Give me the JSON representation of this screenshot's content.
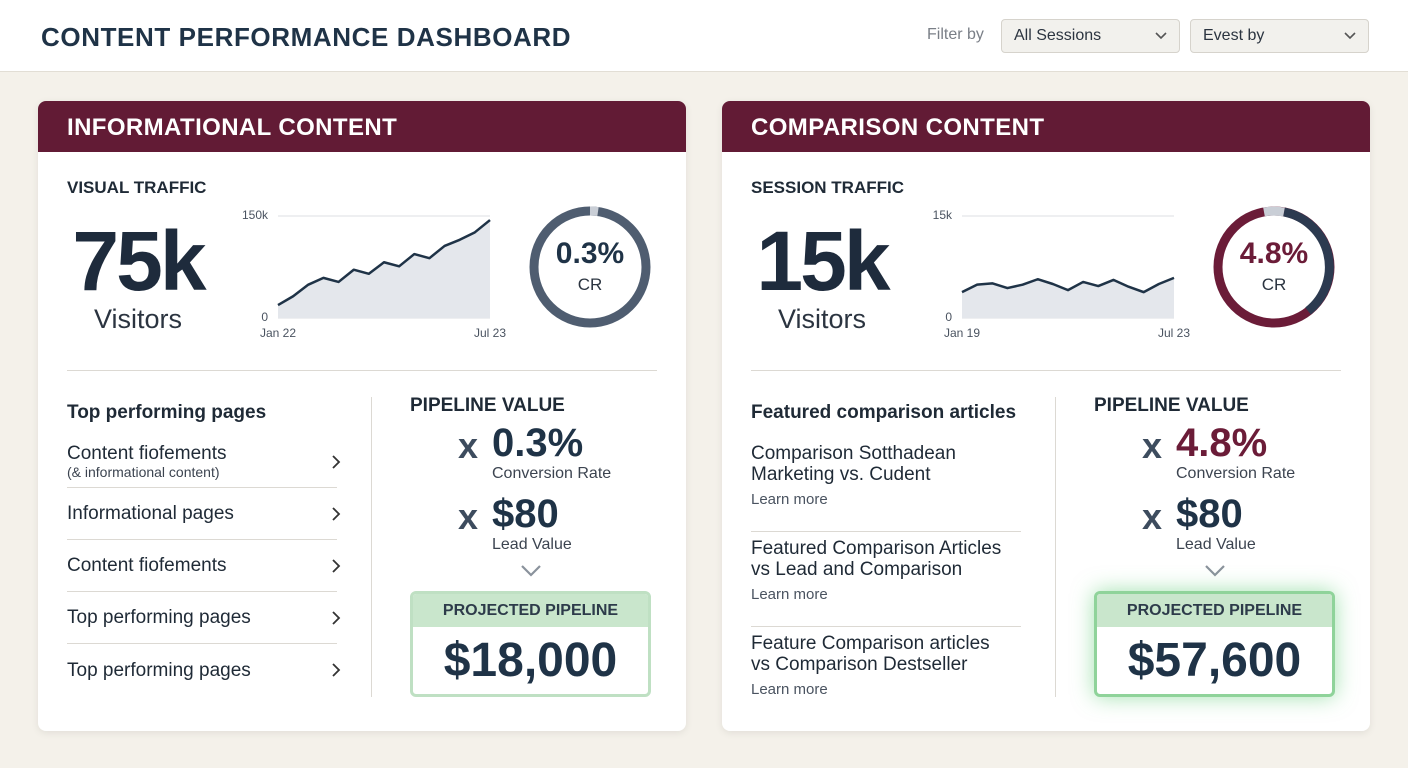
{
  "header": {
    "title": "CONTENT PERFORMANCE DASHBOARD",
    "filter_label": "Filter by",
    "filters": [
      "All Sessions",
      "Evest by"
    ]
  },
  "panels": [
    {
      "title": "INFORMATIONAL CONTENT",
      "traffic_label": "VISUAL TRAFFIC",
      "big_number": "75k",
      "big_unit": "Visitors",
      "chart": {
        "type": "area",
        "color": "#1f3347",
        "categories": [
          "Jan 22",
          null,
          null,
          null,
          null,
          null,
          null,
          null,
          null,
          null,
          null,
          null,
          null,
          null,
          "Jul 23"
        ],
        "values": [
          19000,
          32000,
          49000,
          59000,
          53000,
          71000,
          65000,
          82000,
          76000,
          94000,
          88000,
          106000,
          115000,
          126000,
          144000
        ],
        "ylim": [
          0,
          150000
        ],
        "yticks": [
          0,
          {
            "value": 150000,
            "label": "150k"
          }
        ],
        "grid": true
      },
      "gauge": {
        "value": "0.3%",
        "label": "CR"
      },
      "list_title": "Top performing pages",
      "list": [
        {
          "title": "Content fiofements",
          "note": "(& informational content)"
        },
        {
          "title": "Informational pages"
        },
        {
          "title": "Content fiofements"
        },
        {
          "title": "Top performing pages"
        },
        {
          "title": "Top performing pages"
        }
      ],
      "pipeline": {
        "title": "PIPELINE VALUE",
        "rows": [
          {
            "op": "x",
            "value": "0.3%",
            "label": "Conversion Rate"
          },
          {
            "op": "x",
            "value": "$80",
            "label": "Lead Value"
          }
        ],
        "projected_label": "PROJECTED PIPELINE",
        "projected_value": "$18,000"
      }
    },
    {
      "title": "COMPARISON CONTENT",
      "traffic_label": "SESSION TRAFFIC",
      "big_number": "15k",
      "big_unit": "Visitors",
      "chart": {
        "type": "area",
        "color": "#1f3347",
        "categories": [
          "Jan 19",
          null,
          null,
          null,
          null,
          null,
          null,
          null,
          null,
          null,
          null,
          null,
          null,
          null,
          "Jul 23"
        ],
        "values": [
          3800,
          4900,
          5100,
          4400,
          4900,
          5700,
          5000,
          4100,
          5300,
          4700,
          5600,
          4600,
          3800,
          5000,
          5900
        ],
        "ylim": [
          0,
          15000
        ],
        "yticks": [
          0,
          {
            "value": 15000,
            "label": "15k"
          }
        ],
        "grid": true
      },
      "gauge": {
        "value": "4.8%",
        "label": "CR"
      },
      "list_title": "Featured comparison articles",
      "list": [
        {
          "lines": [
            "Comparison Sotthadean",
            "Marketing vs. Cudent"
          ],
          "link": "Learn more"
        },
        {
          "lines": [
            "Featured Comparison Articles",
            "vs Lead and Comparison"
          ],
          "link": "Learn more"
        },
        {
          "lines": [
            "Feature Comparison articles",
            "vs Comparison Destseller"
          ],
          "link": "Learn more"
        }
      ],
      "pipeline": {
        "title": "PIPELINE VALUE",
        "rows": [
          {
            "op": "x",
            "value": "4.8%",
            "label": "Conversion Rate"
          },
          {
            "op": "x",
            "value": "$80",
            "label": "Lead Value"
          }
        ],
        "projected_label": "PROJECTED PIPELINE",
        "projected_value": "$57,600"
      }
    }
  ]
}
